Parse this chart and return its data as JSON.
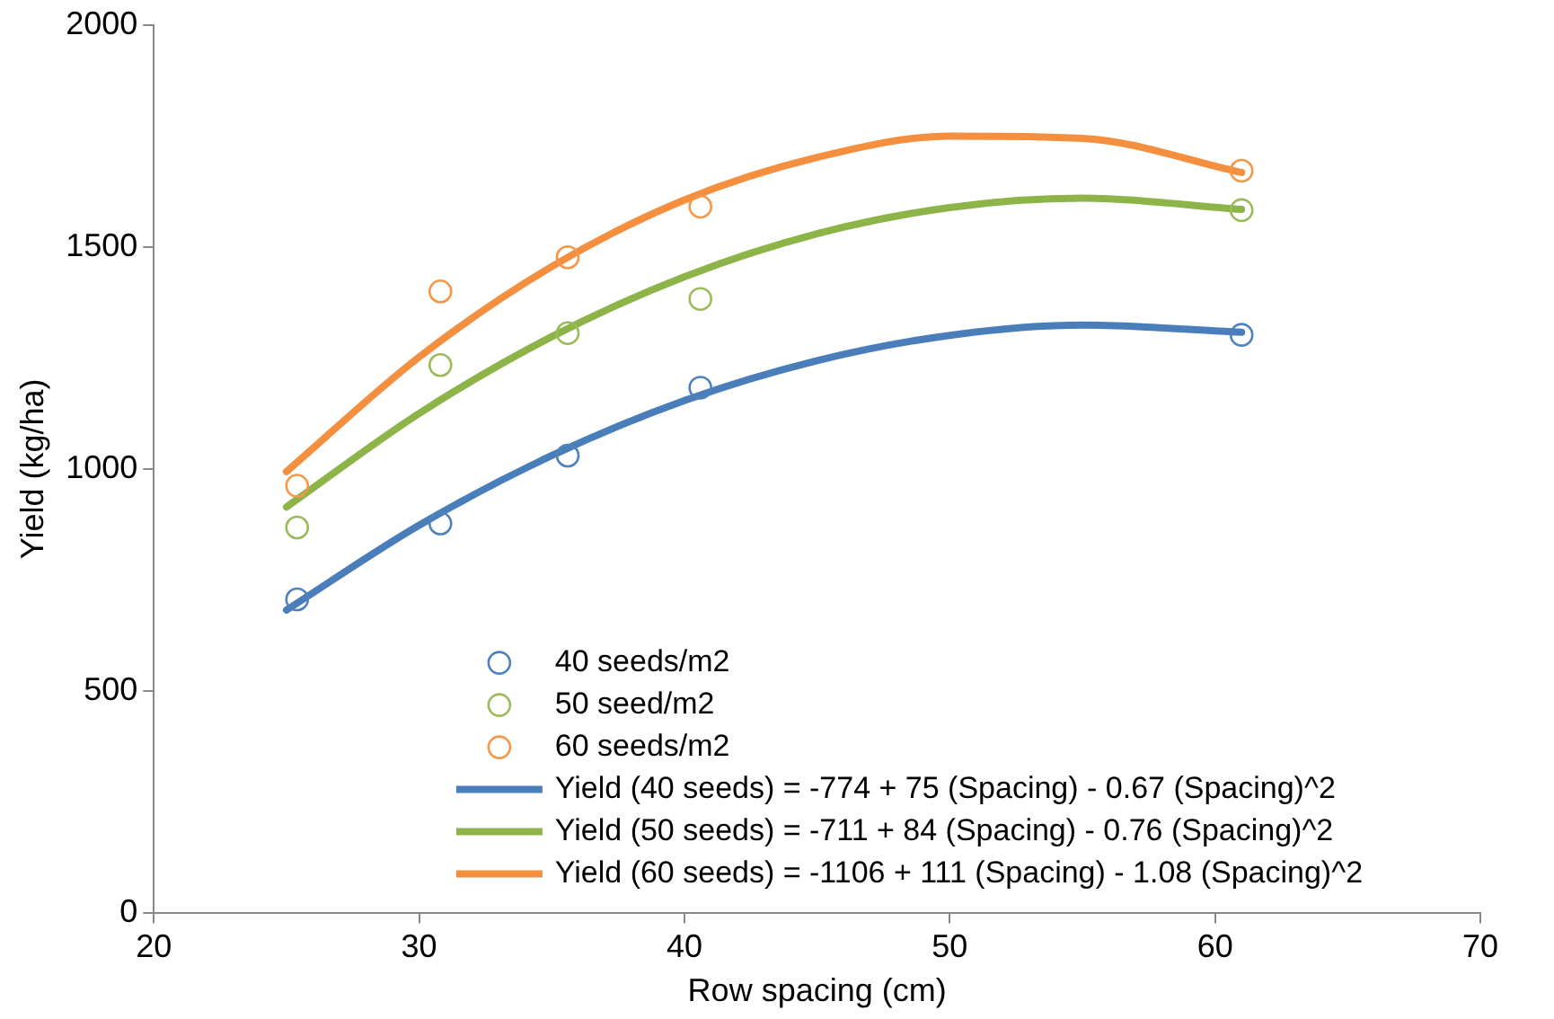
{
  "chart_data": {
    "type": "scatter",
    "xlabel": "Row spacing (cm)",
    "ylabel": "Yield (kg/ha)",
    "xlim": [
      20,
      70
    ],
    "xticks": [
      20,
      30,
      40,
      50,
      60,
      70
    ],
    "ylim": [
      0,
      2000
    ],
    "yticks": [
      0,
      500,
      1000,
      1500,
      2000
    ],
    "grid": false,
    "legend": "bottom right",
    "marker": "circle",
    "series": [
      {
        "name": "40 seeds/m2",
        "color": "#4f81bd",
        "x": [
          25.4,
          30.8,
          35.6,
          40.6,
          61
        ],
        "values": [
          706,
          877,
          1030,
          1183,
          1302
        ]
      },
      {
        "name": "50 seed/m2",
        "color": "#9bbb59",
        "x": [
          25.4,
          30.8,
          35.6,
          40.6,
          61
        ],
        "values": [
          868,
          1234,
          1306,
          1383,
          1583
        ]
      },
      {
        "name": "60 seeds/m2",
        "color": "#f79646",
        "x": [
          25.4,
          30.8,
          35.6,
          40.6,
          61
        ],
        "values": [
          962,
          1400,
          1477,
          1591,
          1672
        ]
      },
      {
        "name": "Yield (40 seeds) = -774 + 75 (Spacing) - 0.67 (Spacing)^2",
        "type": "line",
        "marker": "none",
        "color": "#4a7ebb",
        "x": [
          25,
          30,
          35,
          40,
          45,
          50,
          55,
          61
        ],
        "values": [
          682,
          873,
          1030,
          1154,
          1244,
          1301,
          1324,
          1308
        ]
      },
      {
        "name": "Yield (50 seeds) = -711 + 84 (Spacing) - 0.76 (Spacing)^2",
        "type": "line",
        "marker": "none",
        "color": "#8db449",
        "x": [
          25,
          30,
          35,
          40,
          45,
          50,
          55,
          61
        ],
        "values": [
          914,
          1125,
          1298,
          1433,
          1530,
          1589,
          1610,
          1585
        ]
      },
      {
        "name": "Yield (60 seeds) = -1106 + 111 (Spacing) - 1.08 (Spacing)^2",
        "type": "line",
        "marker": "none",
        "color": "#f38f3f",
        "x": [
          25,
          30,
          35,
          40,
          45,
          50,
          55,
          61
        ],
        "values": [
          994,
          1252,
          1456,
          1606,
          1702,
          1750,
          1745,
          1668
        ]
      }
    ]
  }
}
